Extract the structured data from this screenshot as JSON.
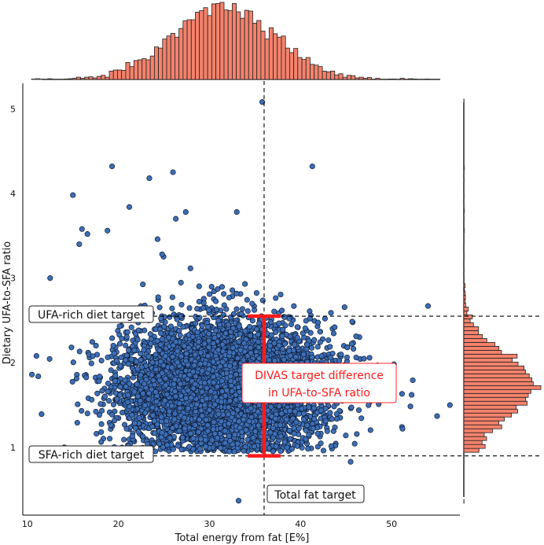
{
  "chart_data": {
    "type": "scatter",
    "title": "",
    "xlabel": "Total energy from fat [E%]",
    "ylabel": "Dietary UFA-to-SFA ratio",
    "xlim": [
      9.5,
      57.5
    ],
    "ylim": [
      0.2,
      5.3
    ],
    "xticks": [
      10,
      20,
      30,
      40,
      50
    ],
    "yticks": [
      1,
      2,
      3,
      4,
      5
    ],
    "grid": false,
    "colors": {
      "points": "#3d6fb6",
      "point_edge": "#0d1a33",
      "histogram": "#f4826c",
      "histogram_edge": "#222222",
      "annotation": "#ff1a1a"
    },
    "point_cloud": {
      "n_points": 6000,
      "x_mean": 31.5,
      "x_sd": 5.5,
      "y_mean": 1.72,
      "y_sd": 0.38
    },
    "outliers": [
      {
        "x": 35.8,
        "y": 5.08
      },
      {
        "x": 19.3,
        "y": 4.32
      },
      {
        "x": 41.3,
        "y": 4.32
      },
      {
        "x": 26.0,
        "y": 4.25
      },
      {
        "x": 23.4,
        "y": 4.18
      },
      {
        "x": 15.0,
        "y": 3.98
      },
      {
        "x": 21.2,
        "y": 3.84
      },
      {
        "x": 16.0,
        "y": 3.58
      },
      {
        "x": 16.6,
        "y": 3.52
      },
      {
        "x": 33.0,
        "y": 3.78
      },
      {
        "x": 27.4,
        "y": 3.78
      },
      {
        "x": 26.3,
        "y": 3.7
      },
      {
        "x": 15.7,
        "y": 3.4
      },
      {
        "x": 18.8,
        "y": 3.56
      },
      {
        "x": 24.3,
        "y": 3.46
      },
      {
        "x": 24.8,
        "y": 3.28
      },
      {
        "x": 12.5,
        "y": 3.0
      },
      {
        "x": 54.0,
        "y": 2.67
      },
      {
        "x": 49.6,
        "y": 1.96
      },
      {
        "x": 52.2,
        "y": 1.62
      },
      {
        "x": 55.0,
        "y": 1.37
      },
      {
        "x": 56.4,
        "y": 1.5
      },
      {
        "x": 10.5,
        "y": 1.86
      },
      {
        "x": 11.2,
        "y": 1.84
      },
      {
        "x": 11.0,
        "y": 2.08
      },
      {
        "x": 33.2,
        "y": 0.37
      },
      {
        "x": 45.5,
        "y": 0.83
      },
      {
        "x": 51.2,
        "y": 1.22
      }
    ],
    "reference_lines": {
      "total_fat_target_x": 36.0,
      "ufa_rich_target_y": 2.55,
      "sfa_rich_target_y": 0.9
    },
    "annotations": {
      "ufa_rich": "UFA-rich diet target",
      "sfa_rich": "SFA-rich diet target",
      "total_fat": "Total fat target",
      "divas_line1": "DIVAS target difference",
      "divas_line2": "in UFA-to-SFA ratio"
    },
    "marginal_x_hist": {
      "range": [
        10,
        55
      ],
      "bins": 100
    },
    "marginal_y_hist": {
      "range": [
        0.2,
        5.3
      ],
      "bins": 110
    }
  }
}
